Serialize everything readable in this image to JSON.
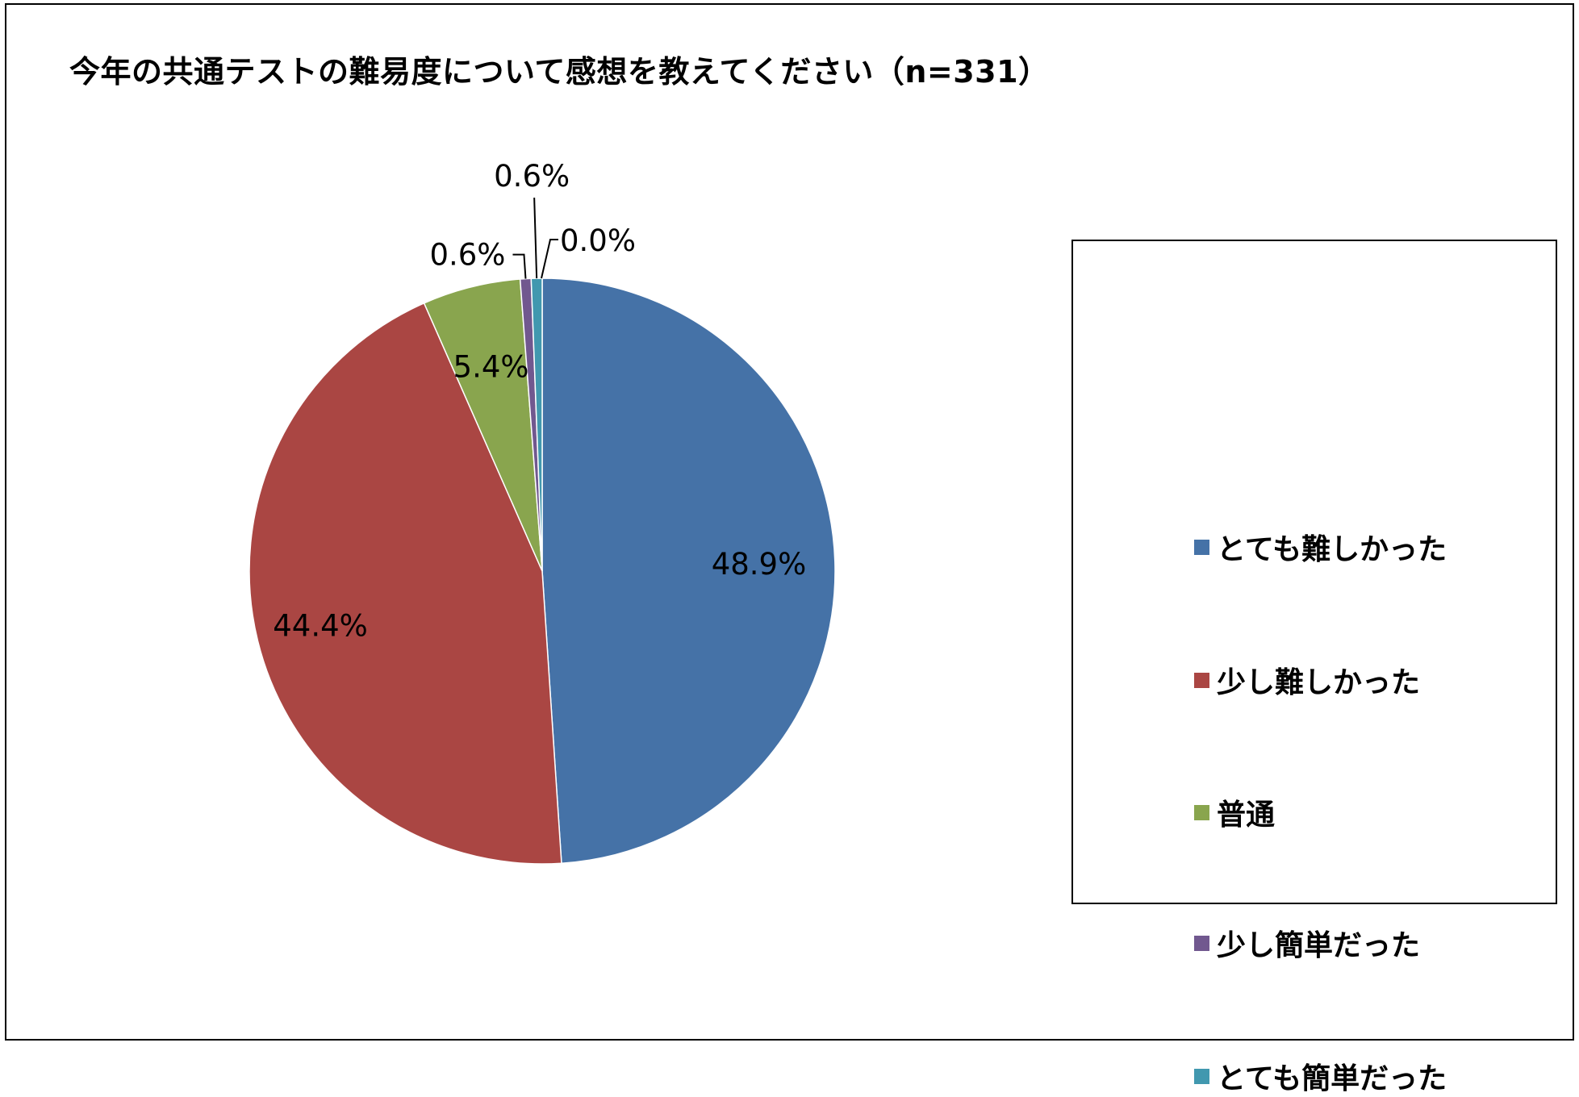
{
  "chart_data": {
    "type": "pie",
    "title": "今年の共通テストの難易度について感想を教えてください（n=331）",
    "slices": [
      {
        "label": "とても難しかった",
        "value": 48.9,
        "display": "48.9%",
        "color": "#4572A7"
      },
      {
        "label": "少し難しかった",
        "value": 44.4,
        "display": "44.4%",
        "color": "#AA4643"
      },
      {
        "label": "普通",
        "value": 5.4,
        "display": "5.4%",
        "color": "#89A54E"
      },
      {
        "label": "少し簡単だった",
        "value": 0.6,
        "display": "0.6%",
        "color": "#71588F"
      },
      {
        "label": "とても簡単だった",
        "value": 0.6,
        "display": "0.6%",
        "color": "#4198AF"
      }
    ],
    "extra_label": "0.0%",
    "legend_position": "right"
  }
}
